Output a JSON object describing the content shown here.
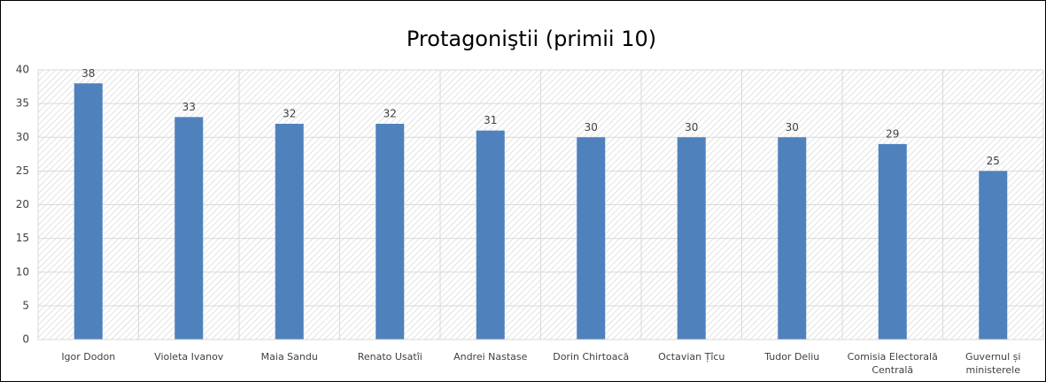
{
  "chart_data": {
    "type": "bar",
    "title": "Protagoniştii (primii 10)",
    "categories": [
      "Igor Dodon",
      "Violeta Ivanov",
      "Maia Sandu",
      "Renato Usatîi",
      "Andrei Nastase",
      "Dorin Chirtoacă",
      "Octavian Țîcu",
      "Tudor Deliu",
      "Comisia Electorală Centrală",
      "Guvernul și ministerele"
    ],
    "values": [
      38,
      33,
      32,
      32,
      31,
      30,
      30,
      30,
      29,
      25
    ],
    "color": "#4f81bd",
    "ylim": [
      0,
      40
    ],
    "yticks": [
      0,
      5,
      10,
      15,
      20,
      25,
      30,
      35,
      40
    ],
    "grid": true
  }
}
